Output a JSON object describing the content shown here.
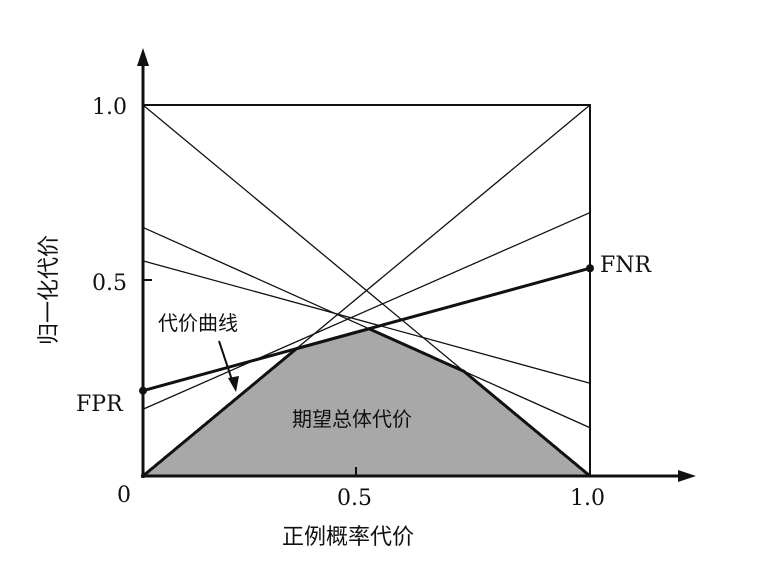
{
  "chart_data": {
    "type": "line",
    "xlabel": "正例概率代价",
    "ylabel": "归一化代价",
    "xlim": [
      0,
      1
    ],
    "ylim": [
      0,
      1
    ],
    "x_ticks": [
      "0.5",
      "1.0"
    ],
    "y_ticks": [
      "0.5",
      "1.0"
    ],
    "origin_label": "0",
    "lines": [
      {
        "y0": 1.0,
        "y1": 0.0
      },
      {
        "y0": 0.0,
        "y1": 1.0
      },
      {
        "y0": 0.67,
        "y1": 0.13
      },
      {
        "y0": 0.58,
        "y1": 0.25
      },
      {
        "y0": 0.18,
        "y1": 0.71
      },
      {
        "y0": 0.23,
        "y1": 0.56,
        "highlight": true
      }
    ],
    "annotations": {
      "fpr": "FPR",
      "fnr": "FNR",
      "cost_curve": "代价曲线",
      "expected_total_cost": "期望总体代价"
    },
    "fill_color": "#a8a8a8"
  }
}
